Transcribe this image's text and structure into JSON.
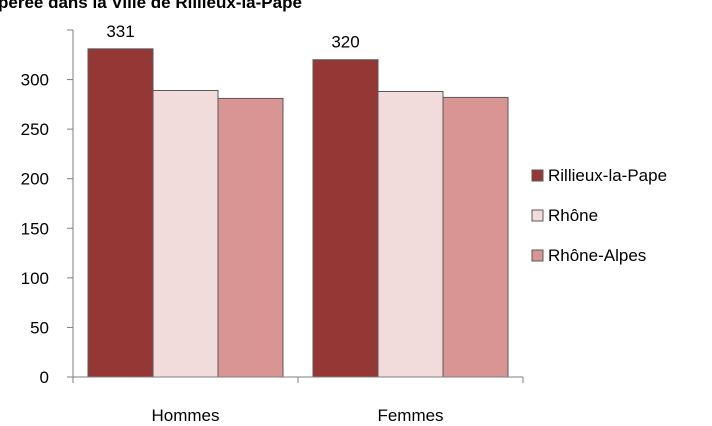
{
  "chart_data": {
    "type": "bar",
    "title": "pérée dans la Ville de Rillieux-la-Pape",
    "categories": [
      "Hommes",
      "Femmes"
    ],
    "series": [
      {
        "name": "Rillieux-la-Pape",
        "values": [
          331,
          320
        ],
        "color": "#953735"
      },
      {
        "name": "Rhône",
        "values": [
          289,
          288
        ],
        "color": "#f2dcdb"
      },
      {
        "name": "Rhône-Alpes",
        "values": [
          281,
          282
        ],
        "color": "#d99594"
      }
    ],
    "data_labels": [
      {
        "series": 0,
        "category": 0,
        "text": "331"
      },
      {
        "series": 0,
        "category": 1,
        "text": "320"
      }
    ],
    "ylim": [
      0,
      350
    ],
    "yticks": [
      0,
      50,
      100,
      150,
      200,
      250,
      300
    ],
    "grid": false,
    "legend": "right"
  }
}
